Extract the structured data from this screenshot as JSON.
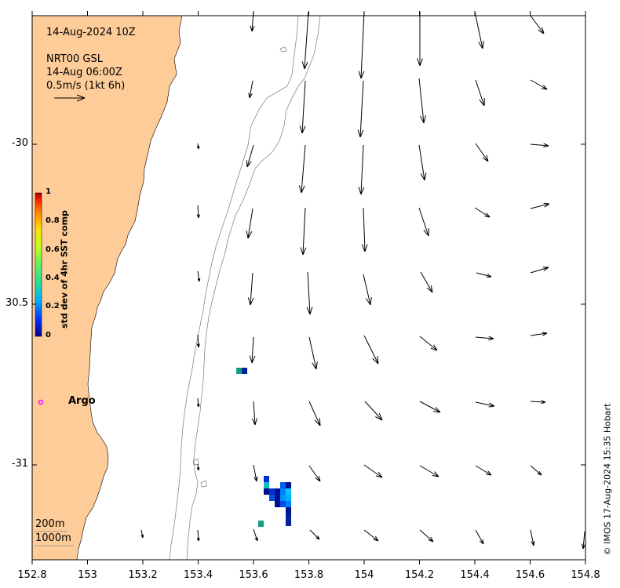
{
  "info": {
    "datetime": "14-Aug-2024 10Z",
    "product": "NRT00 GSL",
    "product_time": "14-Aug 06:00Z",
    "scale": "0.5m/s (1kt 6h)"
  },
  "colorbar": {
    "title": "std dev of 4hr SST comp",
    "ticks": [
      "1",
      "0.8",
      "0.6",
      "0.4",
      "0.2",
      "0"
    ],
    "colors": [
      "#00008f",
      "#0030ff",
      "#00b0ff",
      "#20e0a0",
      "#60f060",
      "#c0ff20",
      "#ffe000",
      "#ff8000",
      "#ff2000",
      "#a00000"
    ]
  },
  "axes": {
    "x_ticks": [
      "152.8",
      "153",
      "153.2",
      "153.4",
      "153.6",
      "153.8",
      "154",
      "154.2",
      "154.4",
      "154.6",
      "154.8"
    ],
    "y_ticks": [
      "-30",
      "30.5",
      "-31"
    ]
  },
  "legend": {
    "contour_200": "200m",
    "contour_1000": "1000m"
  },
  "argo": {
    "label": "Argo",
    "color": "#ff00ff"
  },
  "credit": "© IMOS 17-Aug-2024 15:35 Hobart",
  "colors": {
    "land": "#fdcc99",
    "contour": "#888888",
    "argo": "#ff00ff"
  }
}
